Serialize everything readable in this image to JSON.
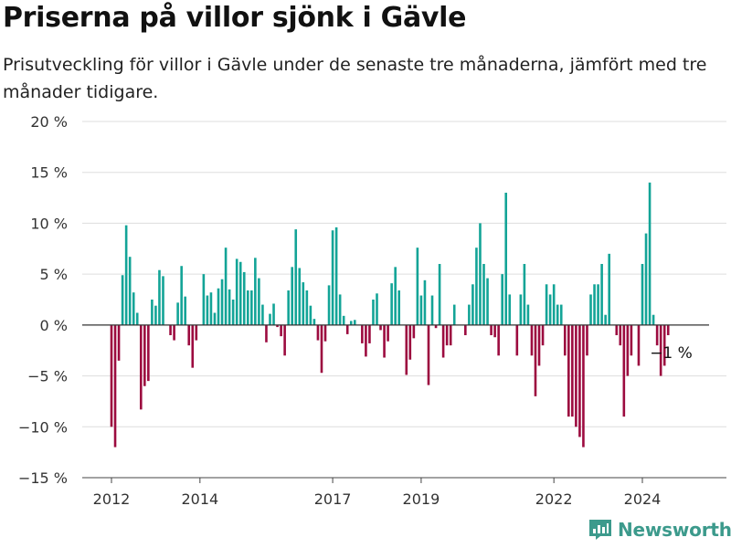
{
  "title": "Priserna på villor sjönk i Gävle",
  "subtitle": "Prisutveckling för villor i Gävle under de senaste tre månaderna, jämfört med tre månader tidigare.",
  "logo_text": "Newsworthy",
  "colors": {
    "positive": "#13a497",
    "negative": "#9c0b3f",
    "grid": "#dddddd",
    "baseline": "#333333",
    "logo": "#3c9a8c"
  },
  "chart_data": {
    "type": "bar",
    "title": "Priserna på villor sjönk i Gävle",
    "xlabel": "",
    "ylabel": "",
    "ylim": [
      -15,
      20
    ],
    "y_ticks": [
      -15,
      -10,
      -5,
      0,
      5,
      10,
      15,
      20
    ],
    "y_tick_labels": [
      "−15 %",
      "−10 %",
      "−5 %",
      "0 %",
      "5 %",
      "10 %",
      "15 %",
      "20 %"
    ],
    "x_tick_labels": [
      {
        "label": "2012",
        "date": "2012-01"
      },
      {
        "label": "2014",
        "date": "2014-01"
      },
      {
        "label": "2017",
        "date": "2017-01"
      },
      {
        "label": "2019",
        "date": "2019-01"
      },
      {
        "label": "2022",
        "date": "2022-01"
      },
      {
        "label": "2024",
        "date": "2024-01"
      }
    ],
    "grid": true,
    "start_month": "2012-01",
    "end_month": "2024-09",
    "values": [
      -10,
      -12,
      -3.5,
      4.9,
      9.8,
      6.7,
      3.2,
      1.2,
      -8.3,
      -6,
      -5.5,
      2.5,
      1.9,
      5.4,
      4.8,
      0,
      -1,
      -1.5,
      2.2,
      5.8,
      2.8,
      -2,
      -4.2,
      -1.5,
      0,
      5,
      2.9,
      3.2,
      1.2,
      3.6,
      4.5,
      7.6,
      3.5,
      2.5,
      6.5,
      6.2,
      5.2,
      3.4,
      3.4,
      6.6,
      4.6,
      2,
      -1.7,
      1.1,
      2.1,
      -0.2,
      -1.1,
      -3,
      3.4,
      5.7,
      9.4,
      5.6,
      4.2,
      3.4,
      1.9,
      0.6,
      -1.5,
      -4.7,
      -1.6,
      3.9,
      9.3,
      9.6,
      3,
      0.9,
      -0.9,
      0.4,
      0.5,
      0,
      -1.8,
      -3.1,
      -1.8,
      2.5,
      3.1,
      -0.5,
      -3.2,
      -1.6,
      4.1,
      5.7,
      3.4,
      0,
      -4.9,
      -3.4,
      -1.3,
      7.6,
      2.9,
      4.4,
      -5.9,
      2.9,
      -0.3,
      6,
      -3.2,
      -2,
      -2,
      2,
      0,
      0,
      -1,
      2,
      4,
      7.6,
      10,
      6,
      4.6,
      -1,
      -1.2,
      -3,
      5,
      13,
      3,
      0,
      -3,
      3,
      6,
      2,
      -3,
      -7,
      -4,
      -2,
      4,
      3,
      4,
      2,
      2,
      -3,
      -9,
      -9,
      -10,
      -11,
      -12,
      -3,
      3,
      4,
      4,
      6,
      1,
      7,
      0,
      -1,
      -2,
      -9,
      -5,
      -3,
      0,
      -4,
      6,
      9,
      14,
      1,
      -2,
      -5,
      -4,
      -1
    ]
  },
  "annotation": {
    "label": "−1 %"
  }
}
